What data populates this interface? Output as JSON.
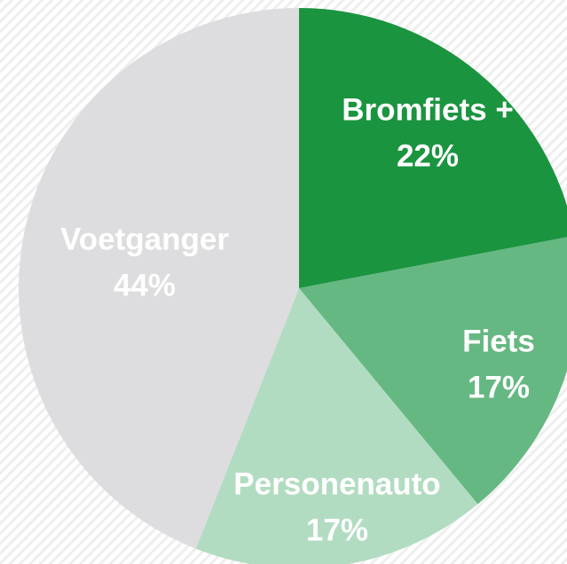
{
  "chart_data": {
    "type": "pie",
    "categories": [
      "Bromfiets +",
      "Fiets",
      "Personenauto",
      "Voetganger"
    ],
    "values": [
      22,
      17,
      17,
      44
    ],
    "value_labels": [
      "22%",
      "17%",
      "17%",
      "44%"
    ],
    "colors": [
      "#1b9440",
      "#66b882",
      "#b2dcc1",
      "#dddddf"
    ]
  }
}
